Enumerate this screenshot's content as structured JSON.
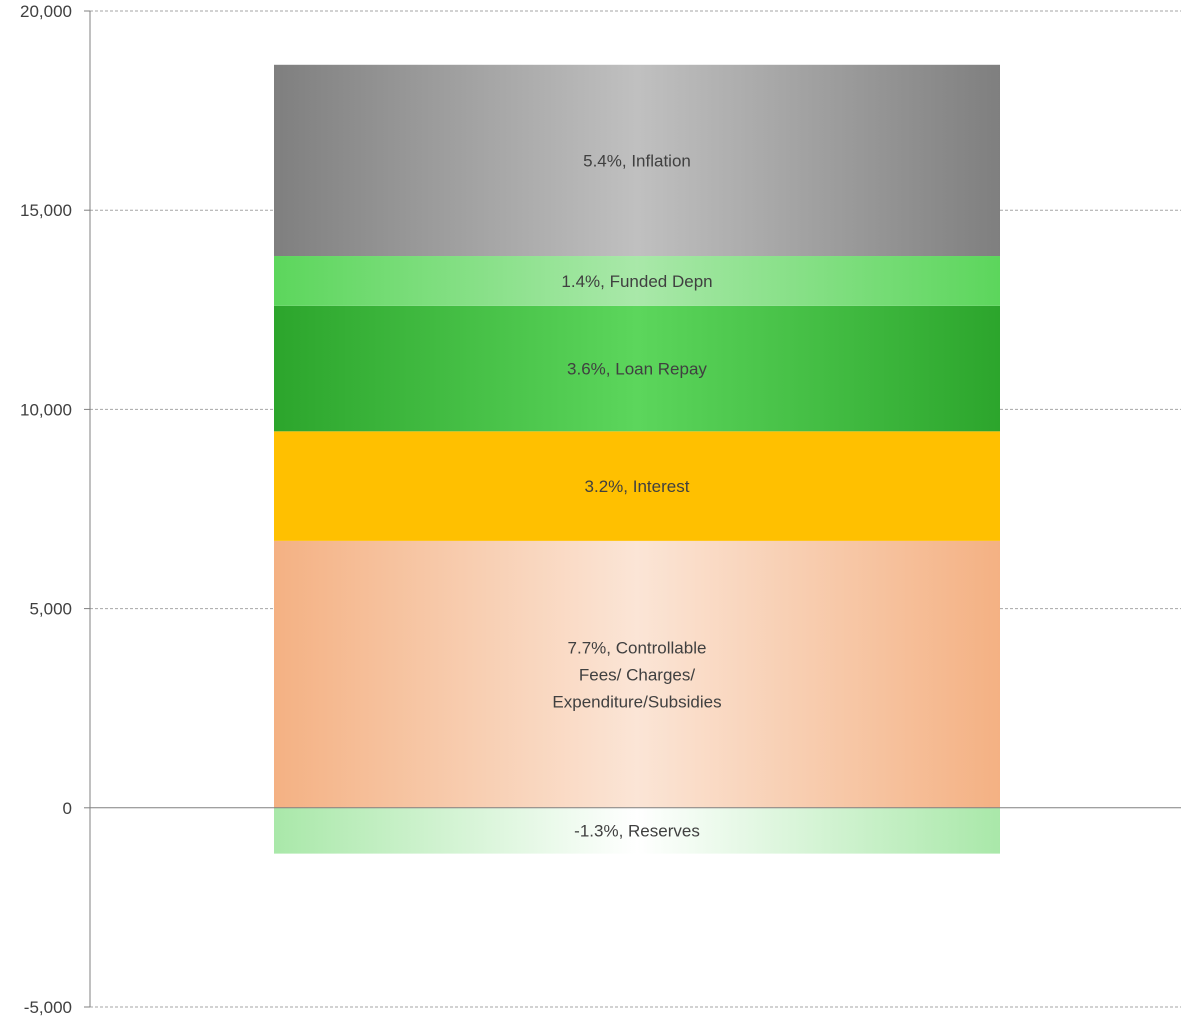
{
  "chart_data": {
    "type": "bar",
    "stacked": true,
    "title": "",
    "xlabel": "",
    "ylabel": "",
    "ylim": [
      -5000,
      20000
    ],
    "yticks": [
      {
        "value": 20000,
        "label": "20,000"
      },
      {
        "value": 15000,
        "label": "15,000"
      },
      {
        "value": 10000,
        "label": "10,000"
      },
      {
        "value": 5000,
        "label": "5,000"
      },
      {
        "value": 0,
        "label": "0"
      },
      {
        "value": -5000,
        "label": "-5,000"
      }
    ],
    "grid": true,
    "legend": "none",
    "segments": [
      {
        "label": [
          "7.7%, Controllable",
          "Fees/ Charges/",
          "Expenditure/Subsidies"
        ],
        "value": 6700,
        "color": "#f4b183",
        "highlight": "#fbe5d6"
      },
      {
        "label": [
          "3.2%, Interest"
        ],
        "value": 2750,
        "color": "#ffc000",
        "highlight": "#ffc000"
      },
      {
        "label": [
          "3.6%, Loan Repay"
        ],
        "value": 3150,
        "color": "#2ca52c",
        "highlight": "#5cd65c"
      },
      {
        "label": [
          "1.4%, Funded Depn"
        ],
        "value": 1250,
        "color": "#5cd65c",
        "highlight": "#a9e8a9"
      },
      {
        "label": [
          "5.4%, Inflation"
        ],
        "value": 4800,
        "color": "#7f7f7f",
        "highlight": "#c0c0c0"
      },
      {
        "label": [
          "-1.3%, Reserves"
        ],
        "value": -1150,
        "color": "#a9e8a9",
        "highlight": "#ffffff"
      }
    ]
  }
}
